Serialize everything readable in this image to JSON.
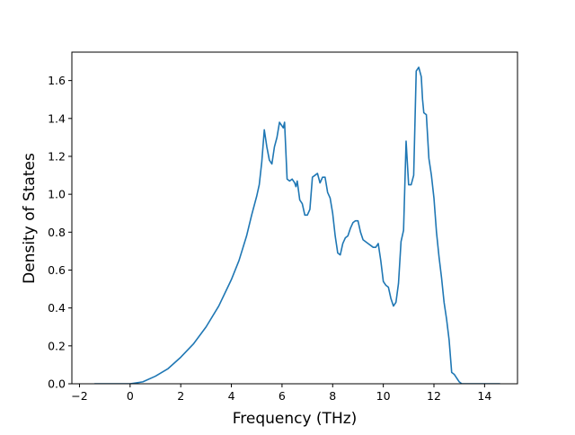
{
  "chart_data": {
    "type": "line",
    "title": "",
    "xlabel": "Frequency (THz)",
    "ylabel": "Density of States",
    "xlim": [
      -2.3,
      15.3
    ],
    "ylim": [
      0.0,
      1.75
    ],
    "xticks": [
      -2,
      0,
      2,
      4,
      6,
      8,
      10,
      12,
      14
    ],
    "xtick_labels": [
      "−2",
      "0",
      "2",
      "4",
      "6",
      "8",
      "10",
      "12",
      "14"
    ],
    "yticks": [
      0.0,
      0.2,
      0.4,
      0.6,
      0.8,
      1.0,
      1.2,
      1.4,
      1.6
    ],
    "ytick_labels": [
      "0.0",
      "0.2",
      "0.4",
      "0.6",
      "0.8",
      "1.0",
      "1.2",
      "1.4",
      "1.6"
    ],
    "grid": false,
    "legend": "none",
    "line_color": "#1f77b4",
    "series": [
      {
        "x": [
          -1.4,
          0.0,
          0.5,
          1.0,
          1.5,
          2.0,
          2.5,
          3.0,
          3.5,
          4.0,
          4.3,
          4.6,
          4.8,
          5.0,
          5.1,
          5.2,
          5.3,
          5.4,
          5.5,
          5.6,
          5.7,
          5.8,
          5.9,
          6.0,
          6.05,
          6.1,
          6.2,
          6.3,
          6.4,
          6.5,
          6.55,
          6.6,
          6.7,
          6.8,
          6.9,
          7.0,
          7.1,
          7.2,
          7.3,
          7.4,
          7.5,
          7.6,
          7.7,
          7.8,
          7.9,
          8.0,
          8.1,
          8.2,
          8.3,
          8.4,
          8.5,
          8.6,
          8.7,
          8.8,
          8.9,
          9.0,
          9.1,
          9.2,
          9.3,
          9.4,
          9.5,
          9.6,
          9.7,
          9.8,
          9.9,
          10.0,
          10.1,
          10.2,
          10.3,
          10.4,
          10.5,
          10.6,
          10.7,
          10.8,
          10.9,
          11.0,
          11.1,
          11.2,
          11.3,
          11.4,
          11.5,
          11.55,
          11.6,
          11.7,
          11.8,
          11.9,
          12.0,
          12.1,
          12.2,
          12.3,
          12.4,
          12.5,
          12.6,
          12.7,
          12.8,
          12.9,
          13.0,
          13.1,
          13.2,
          13.3,
          13.4,
          14.6
        ],
        "values": [
          0.0,
          0.0,
          0.01,
          0.04,
          0.08,
          0.14,
          0.21,
          0.3,
          0.41,
          0.55,
          0.65,
          0.78,
          0.89,
          0.99,
          1.05,
          1.17,
          1.34,
          1.25,
          1.18,
          1.16,
          1.25,
          1.3,
          1.38,
          1.36,
          1.35,
          1.38,
          1.08,
          1.07,
          1.08,
          1.06,
          1.04,
          1.07,
          0.97,
          0.95,
          0.89,
          0.89,
          0.92,
          1.09,
          1.1,
          1.11,
          1.06,
          1.09,
          1.09,
          1.01,
          0.98,
          0.9,
          0.78,
          0.69,
          0.68,
          0.74,
          0.77,
          0.78,
          0.82,
          0.85,
          0.86,
          0.86,
          0.8,
          0.76,
          0.75,
          0.74,
          0.73,
          0.72,
          0.72,
          0.74,
          0.65,
          0.54,
          0.52,
          0.51,
          0.45,
          0.41,
          0.43,
          0.53,
          0.75,
          0.81,
          1.28,
          1.05,
          1.05,
          1.1,
          1.65,
          1.67,
          1.62,
          1.5,
          1.43,
          1.42,
          1.19,
          1.1,
          0.98,
          0.8,
          0.67,
          0.56,
          0.43,
          0.34,
          0.23,
          0.06,
          0.05,
          0.03,
          0.01,
          0.0,
          0.0,
          0.0,
          0.0,
          0.0
        ]
      }
    ]
  }
}
